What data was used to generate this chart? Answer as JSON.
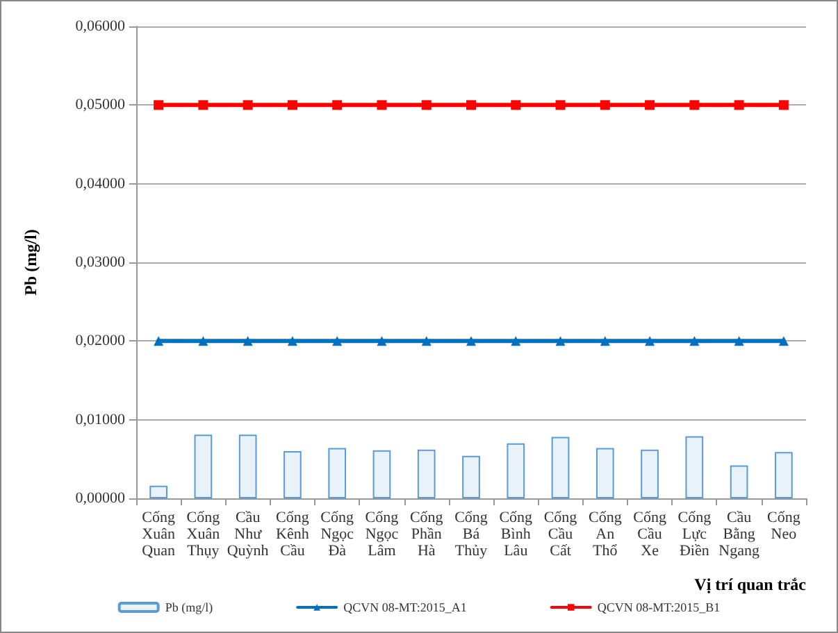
{
  "chart_data": {
    "type": "bar",
    "xlabel": "Vị trí quan trắc",
    "ylabel": "Pb (mg/l)",
    "categories": [
      "Cống Xuân Quan",
      "Cống Xuân Thụy",
      "Cầu Như Quỳnh",
      "Cống Kênh Cầu",
      "Cống Ngọc Đà",
      "Cống Ngọc Lâm",
      "Cống Phần Hà",
      "Cống Bá Thủy",
      "Cống Bình Lâu",
      "Cống Cầu Cất",
      "Cống An Thổ",
      "Cống Cầu Xe",
      "Cống Lực Điền",
      "Cầu Bằng Ngang",
      "Cống Neo"
    ],
    "series": [
      {
        "name": "Pb (mg/l)",
        "color": "#5b9bd5",
        "values": [
          0.0016,
          0.0081,
          0.0081,
          0.006,
          0.0064,
          0.0061,
          0.0062,
          0.0054,
          0.007,
          0.0078,
          0.0064,
          0.0062,
          0.0079,
          0.0042,
          0.0059
        ]
      },
      {
        "name": "QCVN 08-MT:2015_A1",
        "type": "line",
        "color": "#0070c0",
        "marker": "triangle",
        "values": [
          0.02,
          0.02,
          0.02,
          0.02,
          0.02,
          0.02,
          0.02,
          0.02,
          0.02,
          0.02,
          0.02,
          0.02,
          0.02,
          0.02,
          0.02
        ]
      },
      {
        "name": "QCVN 08-MT:2015_B1",
        "type": "line",
        "color": "#ff0000",
        "marker": "square",
        "values": [
          0.05,
          0.05,
          0.05,
          0.05,
          0.05,
          0.05,
          0.05,
          0.05,
          0.05,
          0.05,
          0.05,
          0.05,
          0.05,
          0.05,
          0.05
        ]
      }
    ],
    "ylim": [
      0,
      0.06
    ],
    "yticks": [
      {
        "value": 0,
        "label": "0,00000"
      },
      {
        "value": 0.01,
        "label": "0,01000"
      },
      {
        "value": 0.02,
        "label": "0,02000"
      },
      {
        "value": 0.03,
        "label": "0,03000"
      },
      {
        "value": 0.04,
        "label": "0,04000"
      },
      {
        "value": 0.05,
        "label": "0,05000"
      },
      {
        "value": 0.06,
        "label": "0,06000"
      }
    ],
    "grid": "y",
    "legend": "bottom"
  }
}
